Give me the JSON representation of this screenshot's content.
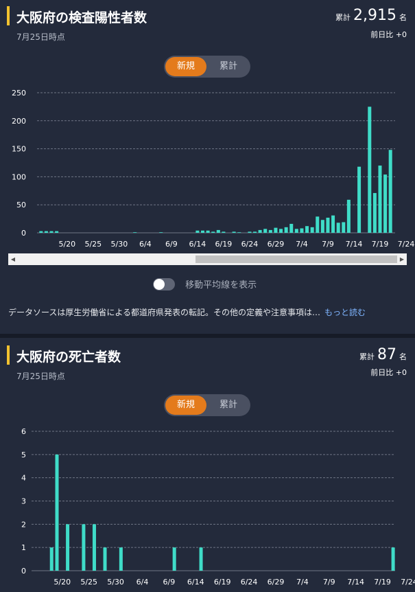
{
  "positive": {
    "title": "大阪府の検査陽性者数",
    "as_of": "7月25日時点",
    "total_label": "累計",
    "total_value": "2,915",
    "total_unit": "名",
    "diff_label": "前日比",
    "diff_value": "+0",
    "toggle": {
      "new": "新規",
      "cumulative": "累計"
    },
    "moving_average_label": "移動平均線を表示",
    "note": "データソースは厚生労働省による都道府県発表の転記。その他の定義や注意事項は…",
    "more_link": "もっと読む",
    "accent_color": "#f2c230",
    "bar_color": "#3fdcc8"
  },
  "deaths": {
    "title": "大阪府の死亡者数",
    "as_of": "7月25日時点",
    "total_label": "累計",
    "total_value": "87",
    "total_unit": "名",
    "diff_label": "前日比",
    "diff_value": "+0",
    "toggle": {
      "new": "新規",
      "cumulative": "累計"
    }
  },
  "chart_data": [
    {
      "type": "bar",
      "start_date": "2020-05-15",
      "x_ticks": [
        "5/20",
        "5/25",
        "5/30",
        "6/4",
        "6/9",
        "6/14",
        "6/19",
        "6/24",
        "6/29",
        "7/4",
        "7/9",
        "7/14",
        "7/19",
        "7/24"
      ],
      "values": [
        3,
        3,
        3,
        3,
        0,
        0,
        0,
        0,
        0,
        0,
        0,
        0,
        0,
        0,
        0,
        0,
        0,
        0,
        1,
        0,
        0,
        0,
        0,
        1,
        0,
        0,
        0,
        0,
        0,
        0,
        4,
        4,
        4,
        2,
        5,
        2,
        0,
        2,
        1,
        0,
        2,
        2,
        5,
        7,
        5,
        9,
        7,
        10,
        16,
        7,
        8,
        12,
        10,
        29,
        23,
        27,
        31,
        18,
        19,
        59,
        0,
        118,
        0,
        225,
        71,
        120,
        104,
        148
      ],
      "yticks": [
        0,
        50,
        100,
        150,
        200,
        250
      ],
      "ylim": [
        0,
        250
      ],
      "grid": true
    },
    {
      "type": "bar",
      "x_ticks": [
        "5/20",
        "5/25",
        "5/30",
        "6/4",
        "6/9",
        "6/14",
        "6/19",
        "6/24",
        "6/29",
        "7/4",
        "7/9",
        "7/14",
        "7/19",
        "7/24"
      ],
      "values": [
        0,
        0,
        0,
        1,
        5,
        0,
        2,
        0,
        0,
        2,
        0,
        2,
        0,
        1,
        0,
        0,
        1,
        0,
        0,
        0,
        0,
        0,
        0,
        0,
        0,
        0,
        1,
        0,
        0,
        0,
        0,
        1,
        0,
        0,
        0,
        0,
        0,
        0,
        0,
        0,
        0,
        0,
        0,
        0,
        0,
        0,
        0,
        0,
        0,
        0,
        0,
        0,
        0,
        0,
        0,
        0,
        0,
        0,
        0,
        0,
        0,
        0,
        0,
        0,
        0,
        0,
        0,
        1
      ],
      "yticks": [
        0,
        1,
        2,
        3,
        4,
        5,
        6
      ],
      "ylim": [
        0,
        6
      ],
      "grid": true
    }
  ]
}
